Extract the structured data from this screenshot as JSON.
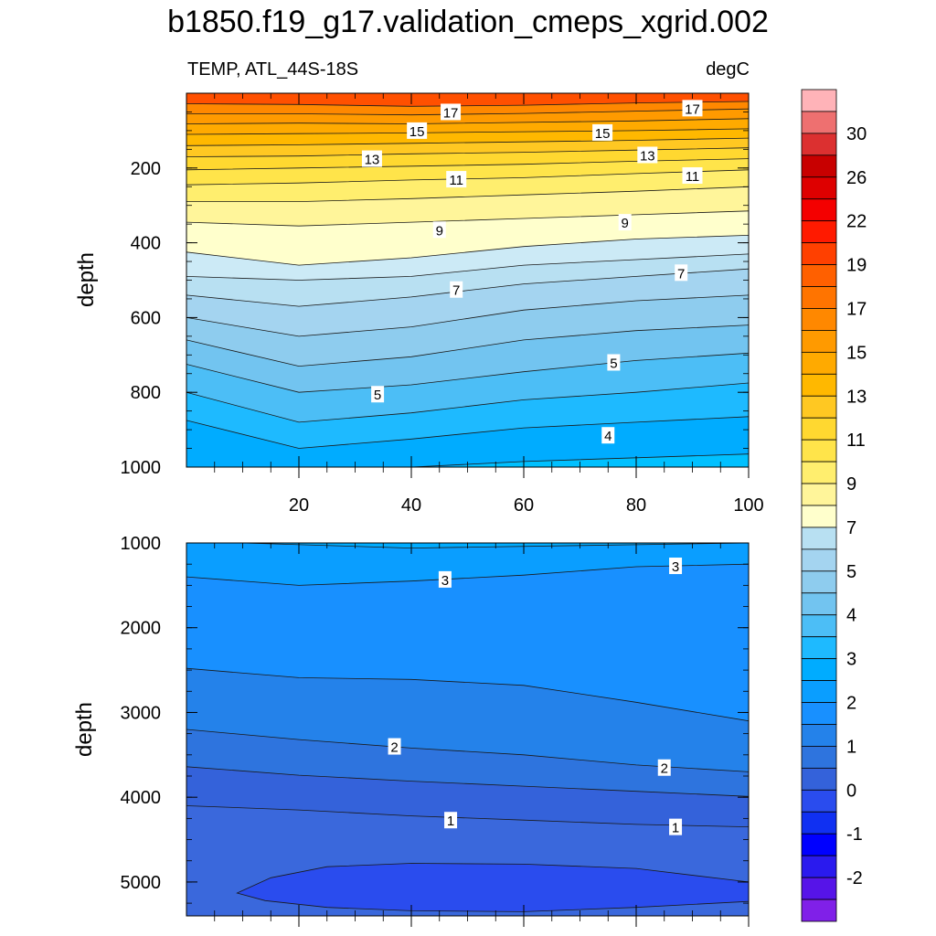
{
  "figure": {
    "title": "b1850.f19_g17.validation_cmeps_xgrid.002",
    "left_label": "TEMP, ATL_44S-18S",
    "right_label": "degC"
  },
  "colorbar": {
    "labels": [
      "30",
      "26",
      "22",
      "19",
      "17",
      "15",
      "13",
      "11",
      "9",
      "7",
      "5",
      "4",
      "3",
      "2",
      "1",
      "0",
      "-1",
      "-2"
    ],
    "colors_top_to_bottom": [
      "#FFB3B8",
      "#EE7070",
      "#DC3030",
      "#C80000",
      "#DE0000",
      "#F40000",
      "#FF1A00",
      "#FF4000",
      "#FF6000",
      "#FF7400",
      "#FF8800",
      "#FF9A00",
      "#FFAA00",
      "#FFB800",
      "#FFC822",
      "#FFD830",
      "#FFE44A",
      "#FFEE6E",
      "#FFF59A",
      "#FFFFCC",
      "#B8E0F2",
      "#A4D4F0",
      "#8ECCEE",
      "#72C4F0",
      "#4CBEF6",
      "#1EBAFF",
      "#00ACFF",
      "#0A9EFF",
      "#1890FF",
      "#2482EA",
      "#2E74DE",
      "#3462DA",
      "#2A4CEE",
      "#1030F2",
      "#0000FF",
      "#2A1AEE",
      "#5614E8",
      "#8020E8"
    ]
  },
  "chart_data": [
    {
      "type": "contour",
      "panel": "upper",
      "title": "TEMP, ATL_44S-18S",
      "units": "degC",
      "xlabel": "",
      "ylabel": "depth",
      "xlim": [
        0,
        100
      ],
      "ylim": [
        1000,
        0
      ],
      "x_ticks": [
        "20",
        "40",
        "60",
        "80",
        "100"
      ],
      "y_ticks": [
        "200",
        "400",
        "600",
        "800",
        "1000"
      ],
      "contour_labels": [
        {
          "text": "17",
          "x": 47,
          "y": 50
        },
        {
          "text": "17",
          "x": 90,
          "y": 40
        },
        {
          "text": "15",
          "x": 41,
          "y": 100
        },
        {
          "text": "15",
          "x": 74,
          "y": 105
        },
        {
          "text": "13",
          "x": 33,
          "y": 175
        },
        {
          "text": "13",
          "x": 82,
          "y": 165
        },
        {
          "text": "11",
          "x": 48,
          "y": 230
        },
        {
          "text": "11",
          "x": 90,
          "y": 220
        },
        {
          "text": "9",
          "x": 45,
          "y": 365
        },
        {
          "text": "9",
          "x": 78,
          "y": 345
        },
        {
          "text": "7",
          "x": 48,
          "y": 525
        },
        {
          "text": "7",
          "x": 88,
          "y": 480
        },
        {
          "text": "5",
          "x": 34,
          "y": 805
        },
        {
          "text": "5",
          "x": 76,
          "y": 720
        },
        {
          "text": "4",
          "x": 75,
          "y": 915
        }
      ],
      "contours": [
        {
          "level": 18,
          "depth": [
            [
              0,
              28
            ],
            [
              20,
              30
            ],
            [
              40,
              35
            ],
            [
              60,
              32
            ],
            [
              80,
              26
            ],
            [
              100,
              22
            ]
          ]
        },
        {
          "level": 17,
          "depth": [
            [
              0,
              55
            ],
            [
              20,
              55
            ],
            [
              40,
              58
            ],
            [
              60,
              54
            ],
            [
              80,
              48
            ],
            [
              100,
              42
            ]
          ]
        },
        {
          "level": 16,
          "depth": [
            [
              0,
              82
            ],
            [
              20,
              80
            ],
            [
              40,
              82
            ],
            [
              60,
              78
            ],
            [
              80,
              74
            ],
            [
              100,
              68
            ]
          ]
        },
        {
          "level": 15,
          "depth": [
            [
              0,
              110
            ],
            [
              20,
              108
            ],
            [
              40,
              106
            ],
            [
              60,
              103
            ],
            [
              80,
              100
            ],
            [
              100,
              95
            ]
          ]
        },
        {
          "level": 14,
          "depth": [
            [
              0,
              140
            ],
            [
              20,
              138
            ],
            [
              40,
              134
            ],
            [
              60,
              130
            ],
            [
              80,
              126
            ],
            [
              100,
              120
            ]
          ]
        },
        {
          "level": 13,
          "depth": [
            [
              0,
              170
            ],
            [
              20,
              168
            ],
            [
              40,
              162
            ],
            [
              60,
              158
            ],
            [
              80,
              152
            ],
            [
              100,
              146
            ]
          ]
        },
        {
          "level": 12,
          "depth": [
            [
              0,
              205
            ],
            [
              20,
              200
            ],
            [
              40,
              195
            ],
            [
              60,
              190
            ],
            [
              80,
              182
            ],
            [
              100,
              175
            ]
          ]
        },
        {
          "level": 11,
          "depth": [
            [
              0,
              245
            ],
            [
              20,
              240
            ],
            [
              40,
              232
            ],
            [
              60,
              226
            ],
            [
              80,
              215
            ],
            [
              100,
              205
            ]
          ]
        },
        {
          "level": 10,
          "depth": [
            [
              0,
              290
            ],
            [
              20,
              290
            ],
            [
              40,
              282
            ],
            [
              60,
              272
            ],
            [
              80,
              262
            ],
            [
              100,
              250
            ]
          ]
        },
        {
          "level": 9,
          "depth": [
            [
              0,
              345
            ],
            [
              20,
              355
            ],
            [
              40,
              345
            ],
            [
              60,
              335
            ],
            [
              80,
              325
            ],
            [
              100,
              315
            ]
          ]
        },
        {
          "level": 8,
          "depth": [
            [
              0,
              425
            ],
            [
              20,
              460
            ],
            [
              40,
              440
            ],
            [
              60,
              410
            ],
            [
              80,
              390
            ],
            [
              100,
              380
            ]
          ]
        },
        {
          "level": 7.5,
          "depth": [
            [
              0,
              490
            ],
            [
              20,
              500
            ],
            [
              40,
              490
            ],
            [
              60,
              460
            ],
            [
              80,
              445
            ],
            [
              100,
              430
            ]
          ]
        },
        {
          "level": 7,
          "depth": [
            [
              0,
              540
            ],
            [
              20,
              570
            ],
            [
              40,
              545
            ],
            [
              60,
              510
            ],
            [
              80,
              490
            ],
            [
              100,
              470
            ]
          ]
        },
        {
          "level": 6,
          "depth": [
            [
              0,
              600
            ],
            [
              20,
              650
            ],
            [
              40,
              625
            ],
            [
              60,
              580
            ],
            [
              80,
              555
            ],
            [
              100,
              540
            ]
          ]
        },
        {
          "level": 5.5,
          "depth": [
            [
              0,
              660
            ],
            [
              20,
              730
            ],
            [
              40,
              705
            ],
            [
              60,
              660
            ],
            [
              80,
              635
            ],
            [
              100,
              620
            ]
          ]
        },
        {
          "level": 5,
          "depth": [
            [
              0,
              725
            ],
            [
              20,
              800
            ],
            [
              40,
              780
            ],
            [
              60,
              745
            ],
            [
              80,
              715
            ],
            [
              100,
              695
            ]
          ]
        },
        {
          "level": 4.5,
          "depth": [
            [
              0,
              800
            ],
            [
              20,
              880
            ],
            [
              40,
              855
            ],
            [
              60,
              820
            ],
            [
              80,
              800
            ],
            [
              100,
              775
            ]
          ]
        },
        {
          "level": 4,
          "depth": [
            [
              0,
              875
            ],
            [
              20,
              950
            ],
            [
              40,
              925
            ],
            [
              60,
              895
            ],
            [
              80,
              880
            ],
            [
              100,
              865
            ]
          ]
        },
        {
          "level": 3.5,
          "depth": [
            [
              10,
              1000
            ],
            [
              20,
              1010
            ],
            [
              40,
              1005
            ],
            [
              60,
              985
            ],
            [
              80,
              975
            ],
            [
              100,
              965
            ]
          ]
        }
      ]
    },
    {
      "type": "contour",
      "panel": "lower",
      "title": "",
      "units": "degC",
      "xlabel": "",
      "ylabel": "depth",
      "xlim": [
        0,
        100
      ],
      "ylim": [
        5400,
        1000
      ],
      "x_ticks": [],
      "y_ticks": [
        "1000",
        "2000",
        "3000",
        "4000",
        "5000"
      ],
      "contour_labels": [
        {
          "text": "3",
          "x": 46,
          "y": 1430
        },
        {
          "text": "3",
          "x": 87,
          "y": 1270
        },
        {
          "text": "2",
          "x": 37,
          "y": 3400
        },
        {
          "text": "2",
          "x": 85,
          "y": 3650
        },
        {
          "text": "1",
          "x": 47,
          "y": 4270
        },
        {
          "text": "1",
          "x": 87,
          "y": 4350
        }
      ],
      "contours": [
        {
          "level": 3.5,
          "depth": [
            [
              10,
              1000
            ],
            [
              40,
              1060
            ],
            [
              70,
              1030
            ],
            [
              100,
              1000
            ]
          ]
        },
        {
          "level": 3,
          "depth": [
            [
              0,
              1400
            ],
            [
              20,
              1500
            ],
            [
              40,
              1450
            ],
            [
              60,
              1380
            ],
            [
              80,
              1280
            ],
            [
              100,
              1250
            ]
          ]
        },
        {
          "level": 2.5,
          "depth": [
            [
              0,
              2480
            ],
            [
              20,
              2590
            ],
            [
              40,
              2610
            ],
            [
              60,
              2680
            ],
            [
              80,
              2880
            ],
            [
              100,
              3100
            ]
          ]
        },
        {
          "level": 2,
          "depth": [
            [
              0,
              3200
            ],
            [
              20,
              3320
            ],
            [
              40,
              3420
            ],
            [
              60,
              3500
            ],
            [
              80,
              3620
            ],
            [
              100,
              3700
            ]
          ]
        },
        {
          "level": 1.5,
          "depth": [
            [
              0,
              3640
            ],
            [
              20,
              3740
            ],
            [
              40,
              3810
            ],
            [
              60,
              3870
            ],
            [
              80,
              3930
            ],
            [
              100,
              3990
            ]
          ]
        },
        {
          "level": 1,
          "depth": [
            [
              0,
              4100
            ],
            [
              20,
              4150
            ],
            [
              40,
              4220
            ],
            [
              60,
              4270
            ],
            [
              80,
              4320
            ],
            [
              100,
              4350
            ]
          ]
        },
        {
          "level": 0.5,
          "closed": true,
          "depth": [
            [
              9,
              5130
            ],
            [
              15,
              4950
            ],
            [
              25,
              4820
            ],
            [
              40,
              4780
            ],
            [
              60,
              4790
            ],
            [
              80,
              4840
            ],
            [
              100,
              5000
            ],
            [
              100,
              5230
            ],
            [
              80,
              5300
            ],
            [
              60,
              5350
            ],
            [
              40,
              5340
            ],
            [
              25,
              5300
            ],
            [
              14,
              5220
            ],
            [
              9,
              5130
            ]
          ]
        }
      ]
    }
  ]
}
